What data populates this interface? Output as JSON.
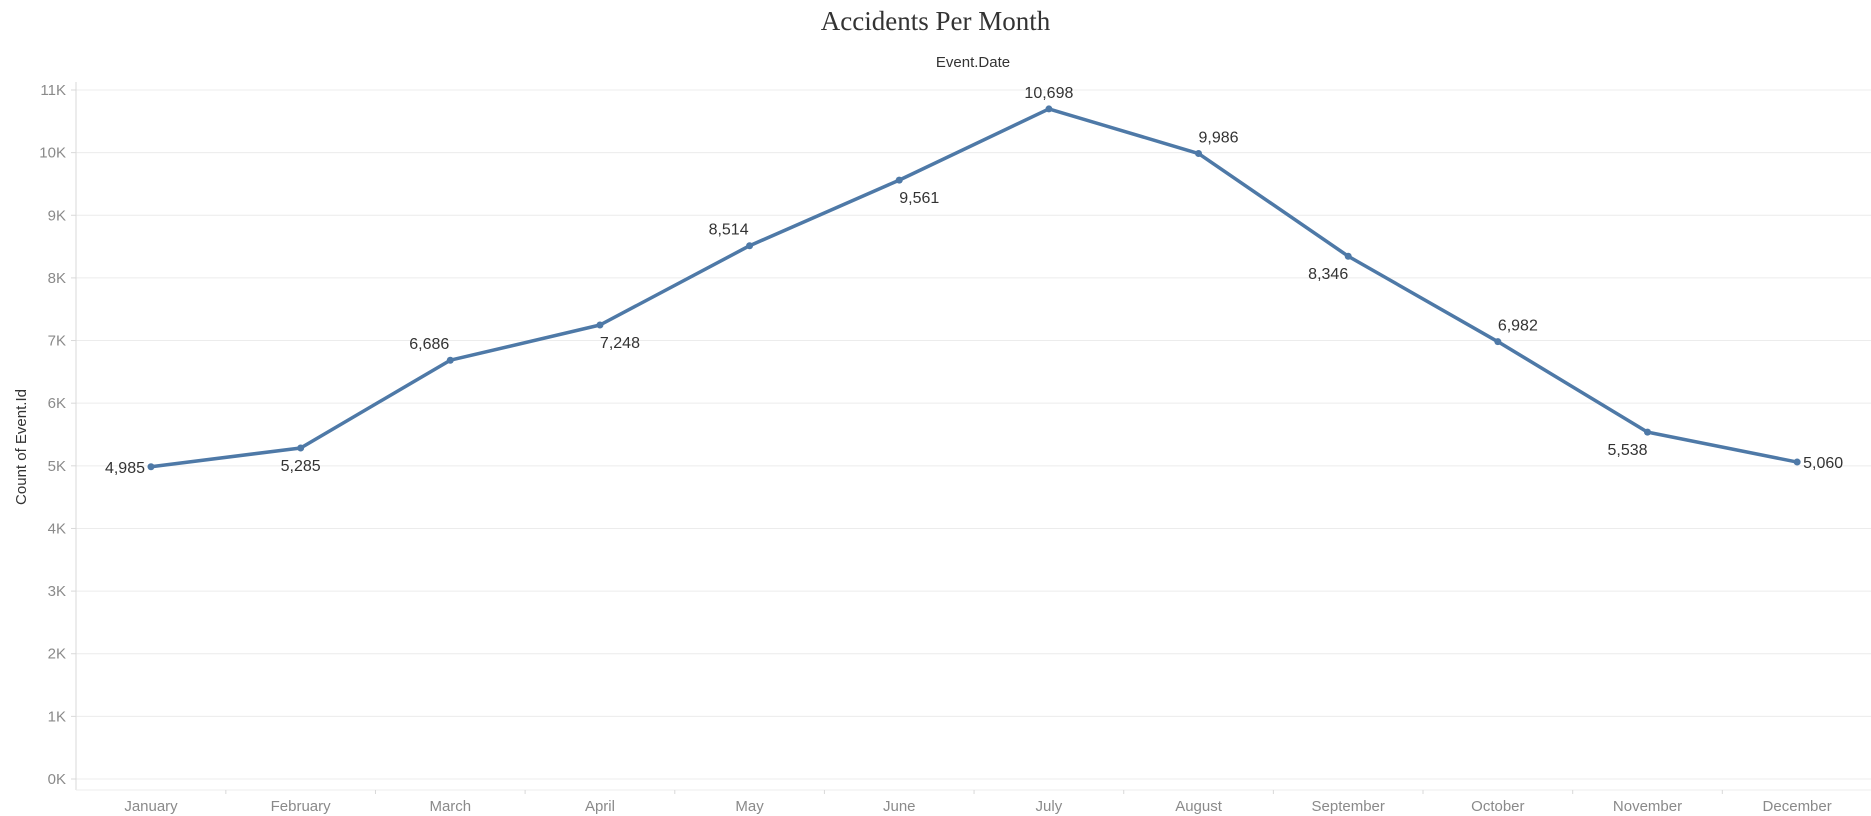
{
  "chart_data": {
    "type": "line",
    "title": "Accidents Per Month",
    "xlabel": "Event.Date",
    "ylabel": "Count of Event.Id",
    "categories": [
      "January",
      "February",
      "March",
      "April",
      "May",
      "June",
      "July",
      "August",
      "September",
      "October",
      "November",
      "December"
    ],
    "series": [
      {
        "values": [
          4985,
          5285,
          6686,
          7248,
          8514,
          9561,
          10698,
          9986,
          8346,
          6982,
          5538,
          5060
        ],
        "labels": [
          "4,985",
          "5,285",
          "6,686",
          "7,248",
          "8,514",
          "9,561",
          "10,698",
          "9,986",
          "8,346",
          "6,982",
          "5,538",
          "5,060"
        ],
        "label_positions": [
          "left",
          "below",
          "above",
          "below",
          "above",
          "below",
          "above",
          "above",
          "below",
          "above",
          "below",
          "right"
        ]
      }
    ],
    "ylim": [
      0,
      11000
    ],
    "yticks": [
      0,
      1000,
      2000,
      3000,
      4000,
      5000,
      6000,
      7000,
      8000,
      9000,
      10000,
      11000
    ],
    "ytick_labels": [
      "0K",
      "1K",
      "2K",
      "3K",
      "4K",
      "5K",
      "6K",
      "7K",
      "8K",
      "9K",
      "10K",
      "11K"
    ],
    "grid": true,
    "colors": {
      "line": "#4e79a7",
      "grid": "#ececec",
      "axis": "#d9d9d9"
    }
  }
}
